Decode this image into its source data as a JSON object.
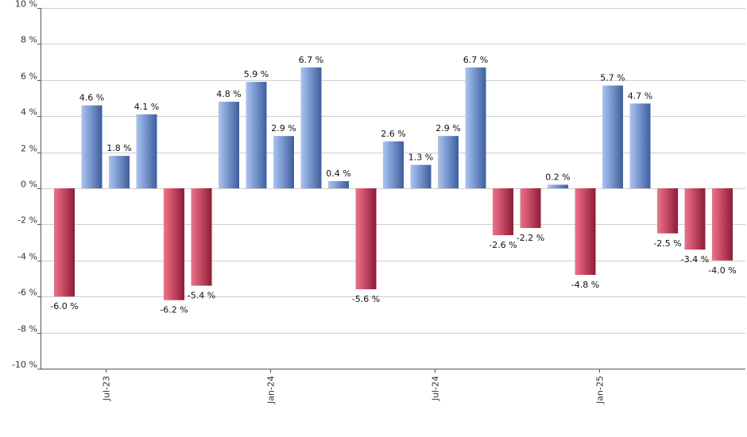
{
  "chart_data": {
    "type": "bar",
    "title": "",
    "xlabel": "",
    "ylabel": "",
    "ylim": [
      -10,
      10
    ],
    "y_ticks": [
      10,
      8,
      6,
      4,
      2,
      0,
      -2,
      -4,
      -6,
      -8,
      -10
    ],
    "y_tick_labels": [
      "10 %",
      "8 %",
      "6 %",
      "4 %",
      "2 %",
      "0 %",
      "-2 %",
      "-4 %",
      "-6 %",
      "-8 %",
      "-10 %"
    ],
    "x_tick_labels": [
      {
        "label": "Jul-23",
        "index": 1.5
      },
      {
        "label": "Jan-24",
        "index": 7.5
      },
      {
        "label": "Jul-24",
        "index": 13.5
      },
      {
        "label": "Jan-25",
        "index": 19.5
      }
    ],
    "grid": true,
    "values": [
      -6.0,
      4.6,
      1.8,
      4.1,
      -6.2,
      -5.4,
      4.8,
      5.9,
      2.9,
      6.7,
      0.4,
      -5.6,
      2.6,
      1.3,
      2.9,
      6.7,
      -2.6,
      -2.2,
      0.2,
      -4.8,
      5.7,
      4.7,
      -2.5,
      -3.4,
      -4.0
    ],
    "data_labels": [
      "-6.0 %",
      "4.6 %",
      "1.8 %",
      "4.1 %",
      "-6.2 %",
      "-5.4 %",
      "4.8 %",
      "5.9 %",
      "2.9 %",
      "6.7 %",
      "0.4 %",
      "-5.6 %",
      "2.6 %",
      "1.3 %",
      "2.9 %",
      "6.7 %",
      "-2.6 %",
      "-2.2 %",
      "0.2 %",
      "-4.8 %",
      "5.7 %",
      "4.7 %",
      "-2.5 %",
      "-3.4 %",
      "-4.0 %"
    ],
    "colors": {
      "positive_light": "#a9c4f5",
      "positive_dark": "#3e5e9c",
      "negative_light": "#f2728a",
      "negative_dark": "#8e1b36"
    }
  }
}
